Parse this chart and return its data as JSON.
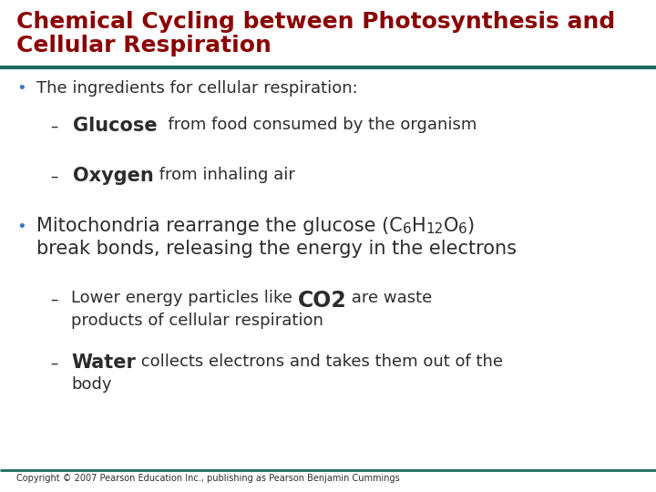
{
  "title_line1": "Chemical Cycling between Photosynthesis and",
  "title_line2": "Cellular Respiration",
  "title_color": "#8B0000",
  "title_fontsize": 18,
  "bg_color": "#FFFFFF",
  "divider_color": "#1a6b5a",
  "divider_thickness": 3,
  "body_color": "#2c2c2c",
  "bullet_color": "#3a7abf",
  "copyright": "Copyright © 2007 Pearson Education Inc., publishing as Pearson Benjamin Cummings",
  "copyright_fontsize": 7
}
